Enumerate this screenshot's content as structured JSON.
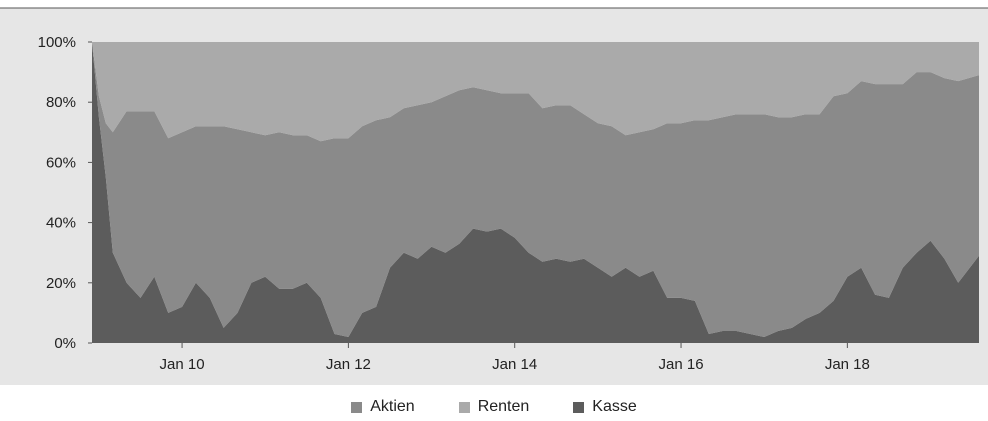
{
  "chart_data": {
    "type": "area",
    "stacked": true,
    "x_axis_ticks": [
      "Jan 10",
      "Jan 12",
      "Jan 14",
      "Jan 16",
      "Jan 18"
    ],
    "y_axis_ticks": [
      "0%",
      "20%",
      "40%",
      "60%",
      "80%",
      "100%"
    ],
    "ylim": [
      0,
      100
    ],
    "legend_position": "bottom-center",
    "colors": {
      "Aktien": "#8a8a8a",
      "Renten": "#aaaaaa",
      "Kasse": "#5c5c5c",
      "plot_background": "#e6e6e6",
      "top_rule": "#555555"
    },
    "x": [
      "2008-12",
      "2009-01",
      "2009-02",
      "2009-03",
      "2009-05",
      "2009-07",
      "2009-09",
      "2009-11",
      "2010-01",
      "2010-03",
      "2010-05",
      "2010-07",
      "2010-09",
      "2010-11",
      "2011-01",
      "2011-03",
      "2011-05",
      "2011-07",
      "2011-09",
      "2011-11",
      "2012-01",
      "2012-03",
      "2012-05",
      "2012-07",
      "2012-09",
      "2012-11",
      "2013-01",
      "2013-03",
      "2013-05",
      "2013-07",
      "2013-09",
      "2013-11",
      "2014-01",
      "2014-03",
      "2014-05",
      "2014-07",
      "2014-09",
      "2014-11",
      "2015-01",
      "2015-03",
      "2015-05",
      "2015-07",
      "2015-09",
      "2015-11",
      "2016-01",
      "2016-03",
      "2016-05",
      "2016-07",
      "2016-09",
      "2016-11",
      "2017-01",
      "2017-03",
      "2017-05",
      "2017-07",
      "2017-09",
      "2017-11",
      "2018-01",
      "2018-03",
      "2018-05",
      "2018-07",
      "2018-09",
      "2018-11",
      "2019-01",
      "2019-03",
      "2019-05",
      "2019-07"
    ],
    "series": [
      {
        "name": "Kasse",
        "values": [
          100,
          75,
          55,
          30,
          20,
          15,
          22,
          10,
          12,
          20,
          15,
          5,
          10,
          20,
          22,
          18,
          18,
          20,
          15,
          3,
          2,
          10,
          12,
          25,
          30,
          28,
          32,
          30,
          33,
          38,
          37,
          38,
          35,
          30,
          27,
          28,
          27,
          28,
          25,
          22,
          25,
          22,
          24,
          15,
          15,
          14,
          3,
          4,
          4,
          3,
          2,
          4,
          5,
          8,
          10,
          14,
          22,
          25,
          16,
          15,
          25,
          30,
          34,
          28,
          20,
          29
        ]
      },
      {
        "name": "Aktien",
        "values": [
          0,
          7,
          18,
          40,
          57,
          62,
          55,
          58,
          58,
          52,
          57,
          67,
          61,
          50,
          47,
          52,
          51,
          49,
          52,
          65,
          66,
          62,
          62,
          50,
          48,
          51,
          48,
          52,
          51,
          47,
          47,
          45,
          48,
          53,
          51,
          51,
          52,
          48,
          48,
          50,
          44,
          48,
          47,
          58,
          58,
          60,
          71,
          71,
          72,
          73,
          74,
          71,
          70,
          68,
          66,
          68,
          61,
          62,
          70,
          71,
          61,
          60,
          56,
          60,
          67,
          60
        ]
      },
      {
        "name": "Renten",
        "values": [
          0,
          18,
          27,
          30,
          23,
          23,
          23,
          32,
          30,
          28,
          28,
          28,
          29,
          30,
          31,
          30,
          31,
          31,
          33,
          32,
          32,
          28,
          26,
          25,
          22,
          21,
          20,
          18,
          16,
          15,
          16,
          17,
          17,
          17,
          22,
          21,
          21,
          24,
          27,
          28,
          31,
          30,
          29,
          27,
          27,
          26,
          26,
          25,
          24,
          24,
          24,
          25,
          25,
          24,
          24,
          18,
          17,
          13,
          14,
          14,
          14,
          10,
          10,
          12,
          13,
          11
        ]
      }
    ]
  },
  "legend": {
    "items": [
      {
        "label": "Aktien",
        "color": "#8a8a8a"
      },
      {
        "label": "Renten",
        "color": "#aaaaaa"
      },
      {
        "label": "Kasse",
        "color": "#5c5c5c"
      }
    ]
  }
}
